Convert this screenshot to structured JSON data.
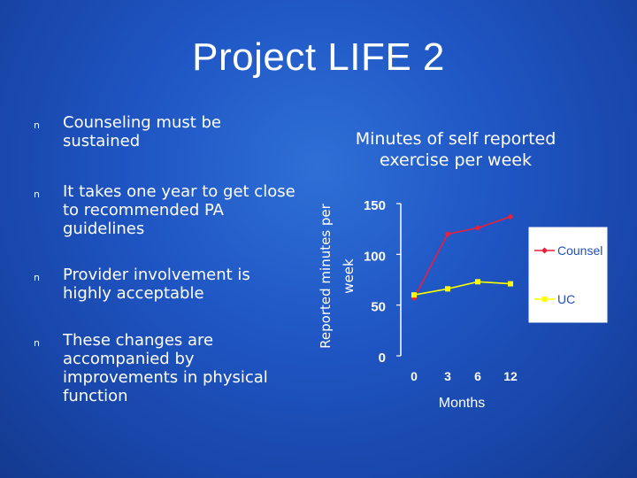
{
  "slide": {
    "title": "Project LIFE 2",
    "bullets": [
      "Counseling must be sustained",
      "It takes one year to get close to recommended PA guidelines",
      "Provider involvement is highly acceptable",
      "These changes are accompanied by improvements in physical function"
    ],
    "bullet_marker": "n"
  },
  "chart_data": {
    "type": "line",
    "title": "Minutes of self reported exercise per week",
    "xlabel": "Months",
    "ylabel": "Reported minutes per week",
    "categories": [
      "0",
      "3",
      "6",
      "12"
    ],
    "ylim": [
      0,
      150
    ],
    "yticks": [
      0,
      50,
      100,
      150
    ],
    "grid": false,
    "legend": "right",
    "series": [
      {
        "name": "Counsel",
        "values": [
          57,
          120,
          126,
          137
        ],
        "color": "#e8203a",
        "marker": "diamond"
      },
      {
        "name": "UC",
        "values": [
          60,
          66,
          73,
          71
        ],
        "color": "#ffff00",
        "marker": "square"
      }
    ]
  }
}
